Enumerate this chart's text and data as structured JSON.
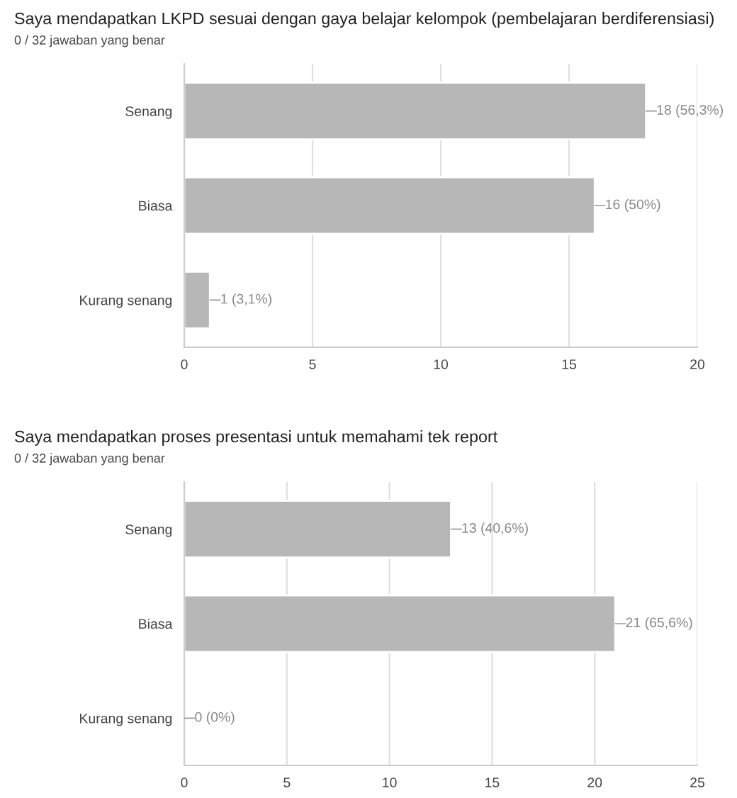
{
  "chart_data": [
    {
      "type": "bar",
      "orientation": "horizontal",
      "title": "Saya mendapatkan LKPD sesuai dengan gaya belajar kelompok (pembelajaran berdiferensiasi)",
      "subtitle": "0 / 32 jawaban yang benar",
      "categories": [
        "Senang",
        "Biasa",
        "Kurang senang"
      ],
      "values": [
        18,
        16,
        1
      ],
      "value_labels": [
        "18 (56,3%)",
        "16 (50%)",
        "1 (3,1%)"
      ],
      "color": "#b7b7b7",
      "xlim": [
        0,
        20
      ],
      "xticks": [
        0,
        5,
        10,
        15,
        20
      ],
      "grid": "x",
      "legend": false
    },
    {
      "type": "bar",
      "orientation": "horizontal",
      "title": "Saya mendapatkan proses presentasi untuk memahami tek report",
      "subtitle": "0 / 32 jawaban yang benar",
      "categories": [
        "Senang",
        "Biasa",
        "Kurang senang"
      ],
      "values": [
        13,
        21,
        0
      ],
      "value_labels": [
        "13 (40,6%)",
        "21 (65,6%)",
        "0 (0%)"
      ],
      "color": "#b7b7b7",
      "xlim": [
        0,
        25
      ],
      "xticks": [
        0,
        5,
        10,
        15,
        20,
        25
      ],
      "grid": "x",
      "legend": false
    }
  ]
}
